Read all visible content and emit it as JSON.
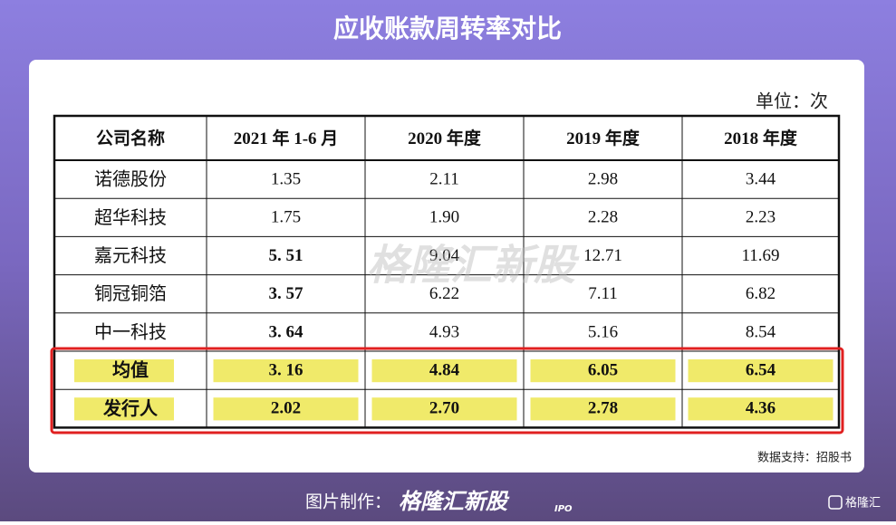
{
  "header": {
    "title": "应收账款周转率对比"
  },
  "unit": "单位：次",
  "table": {
    "columns": [
      "公司名称",
      "2021 年 1-6 月",
      "2020 年度",
      "2019 年度",
      "2018 年度"
    ],
    "rows": [
      [
        "诺德股份",
        "1.35",
        "2.11",
        "2.98",
        "3.44"
      ],
      [
        "超华科技",
        "1.75",
        "1.90",
        "2.28",
        "2.23"
      ],
      [
        "嘉元科技",
        "5. 51",
        "9.04",
        "12.71",
        "11.69"
      ],
      [
        "铜冠铜箔",
        "3. 57",
        "6.22",
        "7.11",
        "6.82"
      ],
      [
        "中一科技",
        "3. 64",
        "4.93",
        "5.16",
        "8.54"
      ],
      [
        "均值",
        "3. 16",
        "4.84",
        "6.05",
        "6.54"
      ],
      [
        "发行人",
        "2.02",
        "2.70",
        "2.78",
        "4.36"
      ]
    ]
  },
  "watermark": "格隆汇新股",
  "source": "数据支持：招股书",
  "footer": {
    "label": "图片制作：",
    "brand": "格隆汇新股",
    "tag": "IPO",
    "logo": "格隆汇"
  }
}
